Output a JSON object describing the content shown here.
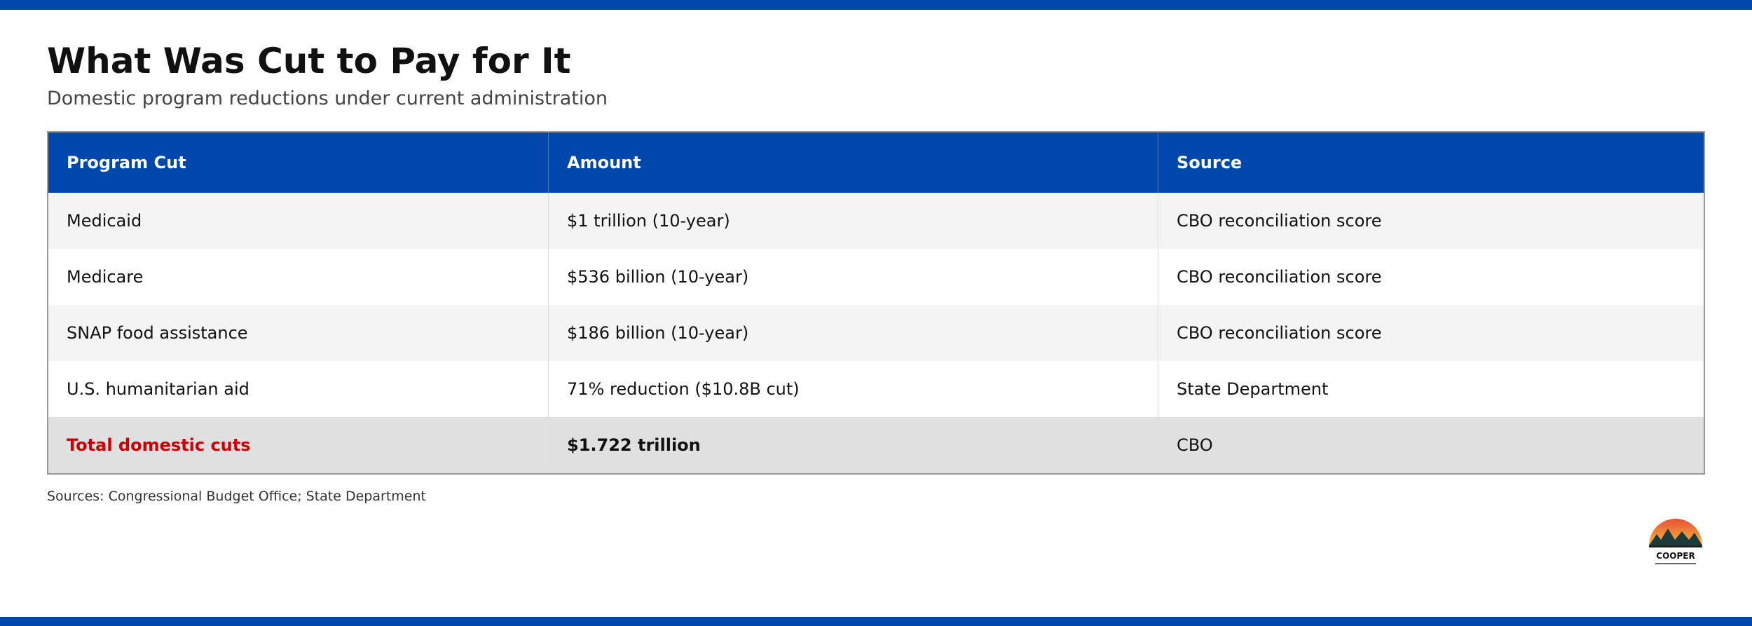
{
  "header": {
    "title": "What Was Cut to Pay for It",
    "subtitle": "Domestic program reductions under current administration"
  },
  "table": {
    "columns": [
      "Program Cut",
      "Amount",
      "Source"
    ],
    "rows": [
      [
        "Medicaid",
        "$1 trillion (10-year)",
        "CBO reconciliation score"
      ],
      [
        "Medicare",
        "$536 billion (10-year)",
        "CBO reconciliation score"
      ],
      [
        "SNAP food assistance",
        "$186 billion (10-year)",
        "CBO reconciliation score"
      ],
      [
        "U.S. humanitarian aid",
        "71% reduction ($10.8B cut)",
        "State Department"
      ],
      [
        "Total domestic cuts",
        "$1.722 trillion",
        "CBO"
      ]
    ]
  },
  "footer": {
    "sources": "Sources: Congressional Budget Office; State Department"
  },
  "logo": {
    "text": "COOPER"
  }
}
